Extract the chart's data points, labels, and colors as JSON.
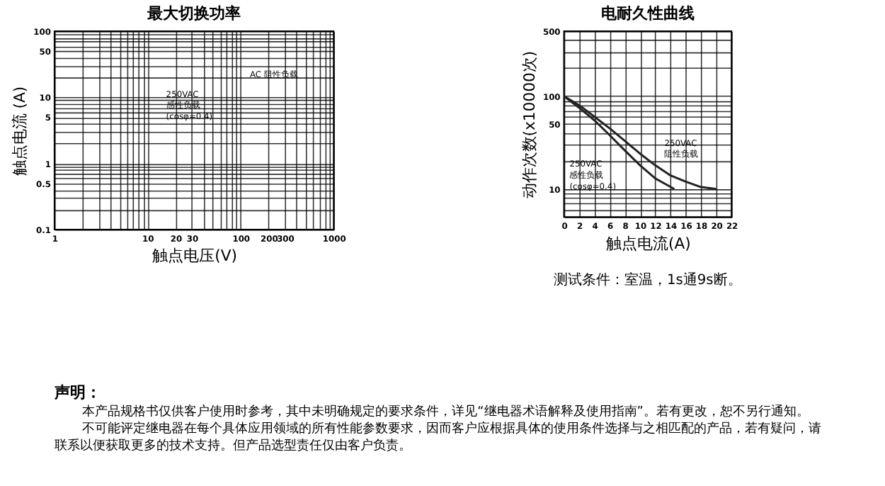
{
  "chart_data": [
    {
      "type": "line",
      "title": "最大切换功率",
      "xlabel": "触点电压(V)",
      "ylabel": "触点电流 (A)",
      "log": "xy",
      "grid": true,
      "legend": false,
      "xlim": [
        1,
        1000
      ],
      "ylim": [
        0.1,
        100
      ],
      "xticks": [
        1,
        {
          "value": 2,
          "label": null
        },
        {
          "value": 3,
          "label": null
        },
        {
          "value": 4,
          "label": null
        },
        {
          "value": 5,
          "label": null
        },
        {
          "value": 6,
          "label": null
        },
        {
          "value": 7,
          "label": null
        },
        {
          "value": 8,
          "label": null
        },
        {
          "value": 9,
          "label": null
        },
        10,
        20,
        30,
        {
          "value": 40,
          "label": null
        },
        {
          "value": 50,
          "label": null
        },
        {
          "value": 60,
          "label": null
        },
        {
          "value": 70,
          "label": null
        },
        {
          "value": 80,
          "label": null
        },
        {
          "value": 90,
          "label": null
        },
        100,
        200,
        300,
        {
          "value": 400,
          "label": null
        },
        {
          "value": 500,
          "label": null
        },
        {
          "value": 600,
          "label": null
        },
        {
          "value": 700,
          "label": null
        },
        {
          "value": 800,
          "label": null
        },
        {
          "value": 900,
          "label": null
        },
        {
          "value": 1000,
          "label": "1000"
        }
      ],
      "yticks": [
        0.1,
        {
          "value": 0.2,
          "label": null
        },
        {
          "value": 0.3,
          "label": null
        },
        {
          "value": 0.4,
          "label": null
        },
        0.5,
        {
          "value": 0.6,
          "label": null
        },
        {
          "value": 0.7,
          "label": null
        },
        {
          "value": 0.8,
          "label": null
        },
        {
          "value": 0.9,
          "label": null
        },
        1,
        {
          "value": 2,
          "label": null
        },
        {
          "value": 3,
          "label": null
        },
        {
          "value": 4,
          "label": null
        },
        5,
        {
          "value": 6,
          "label": null
        },
        {
          "value": 7,
          "label": null
        },
        {
          "value": 8,
          "label": null
        },
        {
          "value": 9,
          "label": null
        },
        10,
        {
          "value": 20,
          "label": null
        },
        {
          "value": 30,
          "label": null
        },
        {
          "value": 40,
          "label": null
        },
        50,
        {
          "value": 60,
          "label": null
        },
        {
          "value": 70,
          "label": null
        },
        {
          "value": 80,
          "label": null
        },
        {
          "value": 90,
          "label": null
        },
        100
      ],
      "annotations": [
        "AC 阻性负载",
        "250VAC\n感性负载\n(cosφ=0.4)"
      ]
    },
    {
      "type": "line",
      "title": "电耐久性曲线",
      "xlabel": "触点电流(A)",
      "ylabel": "动作次数(x10000次)",
      "log": "y",
      "grid": true,
      "legend": false,
      "line_style": "solid",
      "marker": "none",
      "xlim": [
        0,
        22
      ],
      "ylim": [
        5,
        500
      ],
      "xticks": [
        0,
        2,
        4,
        6,
        8,
        10,
        12,
        14,
        16,
        18,
        20,
        22
      ],
      "yticks": [
        {
          "value": 5,
          "label": null
        },
        {
          "value": 6,
          "label": null
        },
        {
          "value": 7,
          "label": null
        },
        {
          "value": 8,
          "label": null
        },
        {
          "value": 9,
          "label": null
        },
        10,
        {
          "value": 20,
          "label": null
        },
        {
          "value": 30,
          "label": null
        },
        {
          "value": 40,
          "label": null
        },
        50,
        {
          "value": 60,
          "label": null
        },
        {
          "value": 70,
          "label": null
        },
        {
          "value": 80,
          "label": null
        },
        {
          "value": 90,
          "label": null
        },
        100,
        {
          "value": 200,
          "label": null
        },
        {
          "value": 300,
          "label": null
        },
        {
          "value": 400,
          "label": null
        },
        500
      ],
      "series": [
        {
          "color": "#222222",
          "x": [
            0,
            2,
            4,
            6,
            8,
            10,
            12,
            14.5
          ],
          "values": [
            100,
            75,
            55,
            38,
            26,
            18,
            13,
            10
          ]
        },
        {
          "color": "#222222",
          "x": [
            0,
            2,
            4,
            6,
            8,
            10,
            12,
            14,
            16,
            18,
            20
          ],
          "values": [
            100,
            80,
            60,
            45,
            33,
            24,
            18,
            14,
            12,
            10.5,
            10
          ]
        }
      ],
      "annotations": [
        "250VAC\n阻性负载",
        "250VAC\n感性负载\n(cosφ=0.4)",
        "测试条件：室温，1s通9s断。"
      ]
    },
    {
      "type": "other",
      "title": "声明：",
      "annotations": [
        "本产品规格书仅供客户使用时参考，其中未明确规定的要求条件，详见“继电器术语解释及使用指南”。若有更改，恕不另行通知。",
        "不可能评定继电器在每个具体应用领域的所有性能参数要求，因而客户应根据具体的使用条件选择与之相匹配的产品，若有疑问，请联系以便获取更多的技术支持。但产品选型责任仅由客户负责。"
      ]
    }
  ]
}
